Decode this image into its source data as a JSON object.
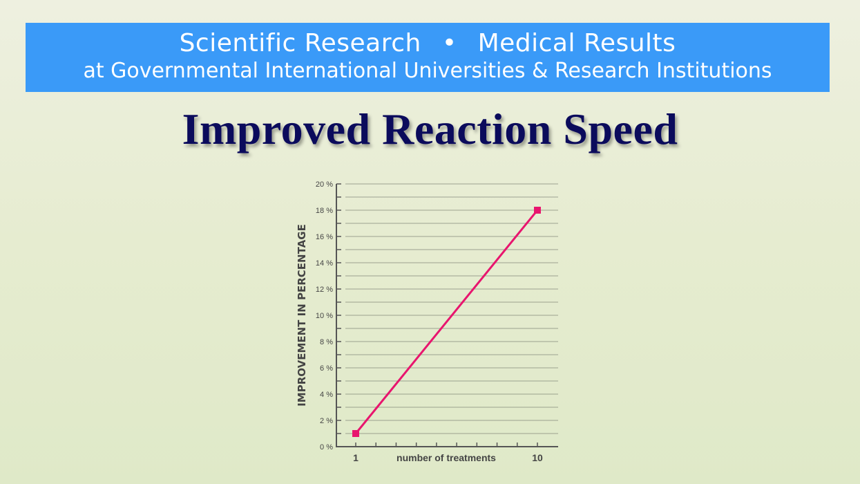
{
  "banner": {
    "line1_left": "Scientific Research",
    "separator": "•",
    "line1_right": "Medical Results",
    "line2": "at Governmental International Universities & Research Institutions"
  },
  "title": "Improved Reaction Speed",
  "colors": {
    "banner": "#3a9af8",
    "title": "#0b0b5c",
    "series": "#e8156e"
  },
  "chart_data": {
    "type": "line",
    "title": "Improved Reaction Speed",
    "xlabel": "number of treatments",
    "ylabel": "IMPROVEMENT IN PERCENTAGE",
    "x_tick_labels": [
      "1",
      "10"
    ],
    "xlim": [
      0,
      10
    ],
    "ylim": [
      0,
      20
    ],
    "y_ticks": [
      0,
      2,
      4,
      6,
      8,
      10,
      12,
      14,
      16,
      18,
      20
    ],
    "y_tick_labels": [
      "0 %",
      "2 %",
      "4 %",
      "6 %",
      "8 %",
      "10 %",
      "12 %",
      "14 %",
      "16 %",
      "18 %",
      "20 %"
    ],
    "grid": true,
    "series": [
      {
        "name": "improvement",
        "x": [
          1,
          10
        ],
        "y": [
          1,
          18
        ]
      }
    ]
  }
}
